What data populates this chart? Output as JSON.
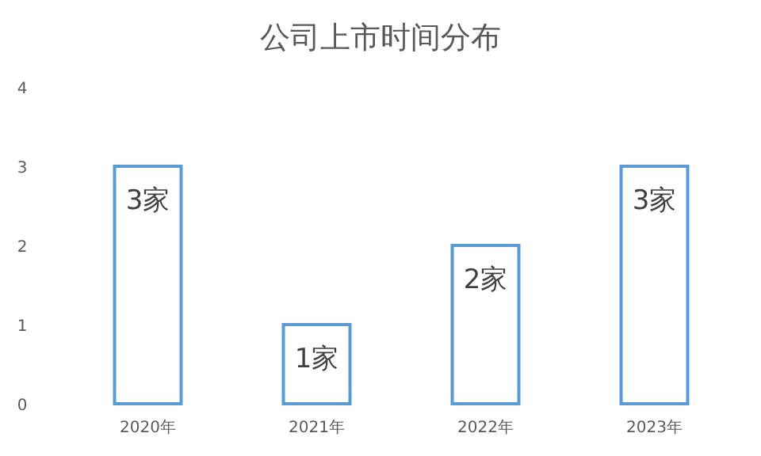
{
  "chart_data": {
    "type": "bar",
    "title": "公司上市时间分布",
    "categories": [
      "2020年",
      "2021年",
      "2022年",
      "2023年"
    ],
    "values": [
      3,
      1,
      2,
      3
    ],
    "value_labels": [
      "3家",
      "1家",
      "2家",
      "3家"
    ],
    "color": "#5b9bd5",
    "ylim": [
      0,
      4
    ],
    "yticks": [
      0,
      1,
      2,
      3,
      4
    ]
  }
}
